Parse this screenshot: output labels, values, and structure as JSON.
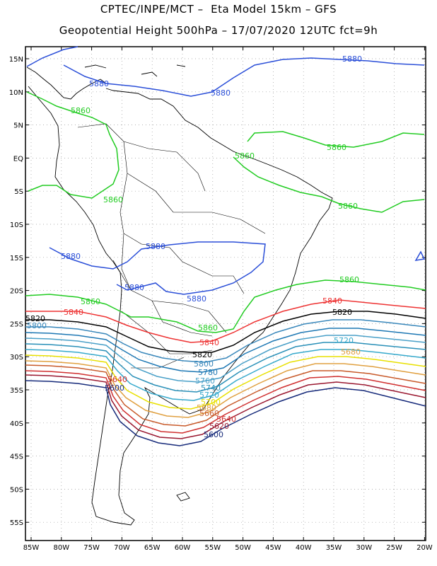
{
  "title_line1": "CPTEC/INPE/MCT –  Eta Model 15km – GFS",
  "title_line2": "Geopotential Height 500hPa – 17/07/2020 12UTC fct=9h",
  "lat_labels": [
    "15N",
    "10N",
    "5N",
    "EQ",
    "5S",
    "10S",
    "15S",
    "20S",
    "25S",
    "30S",
    "35S",
    "40S",
    "45S",
    "50S",
    "55S"
  ],
  "lon_labels": [
    "85W",
    "80W",
    "75W",
    "70W",
    "65W",
    "60W",
    "55W",
    "50W",
    "45W",
    "40W",
    "35W",
    "30W",
    "25W",
    "20W"
  ],
  "colors": {
    "5880": "#2b4fd8",
    "5860": "#22cc22",
    "5840": "#ee3333",
    "5820": "#000000",
    "5800": "#3a88bb",
    "5780": "#1e78b4",
    "5760": "#4aa0c8",
    "5740": "#2a90b8",
    "5720": "#36a9cc",
    "5700": "#e8e000",
    "5680": "#e0a040",
    "5660": "#c85a2a",
    "5640": "#d03030",
    "5620": "#9a1830",
    "5600": "#162a7a"
  },
  "labels": [
    {
      "text": "5880",
      "lvl": "5880"
    },
    {
      "text": "5880",
      "lvl": "5880"
    },
    {
      "text": "5880",
      "lvl": "5880"
    },
    {
      "text": "5880",
      "lvl": "5880"
    },
    {
      "text": "5880",
      "lvl": "5880"
    },
    {
      "text": "5880",
      "lvl": "5880"
    },
    {
      "text": "5880",
      "lvl": "5880"
    },
    {
      "text": "5860",
      "lvl": "5860"
    },
    {
      "text": "5860",
      "lvl": "5860"
    },
    {
      "text": "5860",
      "lvl": "5860"
    },
    {
      "text": "5860",
      "lvl": "5860"
    },
    {
      "text": "5860",
      "lvl": "5860"
    },
    {
      "text": "5860",
      "lvl": "5860"
    },
    {
      "text": "5860",
      "lvl": "5860"
    },
    {
      "text": "5860",
      "lvl": "5860"
    },
    {
      "text": "5840",
      "lvl": "5840"
    },
    {
      "text": "5840",
      "lvl": "5840"
    },
    {
      "text": "5840",
      "lvl": "5840"
    },
    {
      "text": "5820",
      "lvl": "5820"
    },
    {
      "text": "5820",
      "lvl": "5820"
    },
    {
      "text": "5820",
      "lvl": "5820"
    },
    {
      "text": "5800",
      "lvl": "5800"
    },
    {
      "text": "5800",
      "lvl": "5800"
    },
    {
      "text": "5780",
      "lvl": "5780"
    },
    {
      "text": "5760",
      "lvl": "5760"
    },
    {
      "text": "5740",
      "lvl": "5740"
    },
    {
      "text": "5720",
      "lvl": "5720"
    },
    {
      "text": "5720",
      "lvl": "5720"
    },
    {
      "text": "5700",
      "lvl": "5700"
    },
    {
      "text": "5680",
      "lvl": "5680"
    },
    {
      "text": "5680",
      "lvl": "5680"
    },
    {
      "text": "5660",
      "lvl": "5660"
    },
    {
      "text": "5640",
      "lvl": "5640"
    },
    {
      "text": "5640",
      "lvl": "5640"
    },
    {
      "text": "5620",
      "lvl": "5620"
    },
    {
      "text": "5600",
      "lvl": "5600"
    },
    {
      "text": "5600",
      "lvl": "5600"
    }
  ]
}
